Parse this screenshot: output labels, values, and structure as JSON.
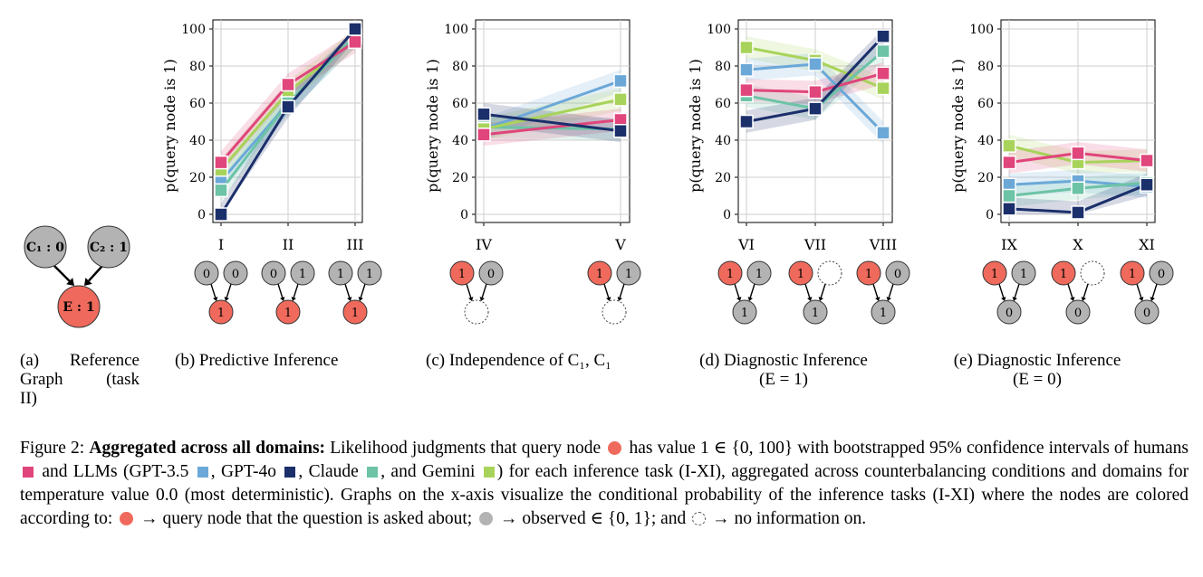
{
  "colors": {
    "humans": "#e0457b",
    "gpt35": "#6ba8d8",
    "gpt4o": "#1b2f6b",
    "claude": "#6cc3a6",
    "gemini": "#a8d35a",
    "query": "#ef6a5c",
    "observed": "#b3b3b3"
  },
  "panel_a": {
    "caption_letter": "(a)",
    "caption_words": [
      "Reference",
      "Graph",
      "(task",
      "II)"
    ],
    "node_c1": "C₁ : 0",
    "node_c2": "C₂ : 1",
    "node_e": "E : 1"
  },
  "chart_data": [
    {
      "type": "line",
      "caption": "(b) Predictive Inference",
      "ylabel": "p(query node is 1)",
      "categories": [
        "I",
        "II",
        "III"
      ],
      "ylim": [
        0,
        100
      ],
      "yticks": [
        0,
        20,
        40,
        60,
        80,
        100
      ],
      "series": [
        {
          "key": "gpt35",
          "values": [
            18,
            60,
            96
          ]
        },
        {
          "key": "gemini",
          "values": [
            24,
            66,
            95
          ]
        },
        {
          "key": "claude",
          "values": [
            13,
            60,
            96
          ]
        },
        {
          "key": "humans",
          "values": [
            28,
            70,
            93
          ]
        },
        {
          "key": "gpt4o",
          "values": [
            0,
            58,
            100
          ]
        }
      ],
      "graphs": [
        {
          "top": [
            "0",
            "0"
          ],
          "bottom": "1",
          "top_types": [
            "obs",
            "obs"
          ],
          "bottom_type": "query"
        },
        {
          "top": [
            "0",
            "1"
          ],
          "bottom": "1",
          "top_types": [
            "obs",
            "obs"
          ],
          "bottom_type": "query"
        },
        {
          "top": [
            "1",
            "1"
          ],
          "bottom": "1",
          "top_types": [
            "obs",
            "obs"
          ],
          "bottom_type": "query"
        }
      ]
    },
    {
      "type": "line",
      "caption": "(c) Independence of C₁, C₁",
      "ylabel": "p(query node is 1)",
      "categories": [
        "IV",
        "V"
      ],
      "ylim": [
        0,
        100
      ],
      "yticks": [
        0,
        20,
        40,
        60,
        80,
        100
      ],
      "series": [
        {
          "key": "claude",
          "values": [
            47,
            46
          ]
        },
        {
          "key": "gpt35",
          "values": [
            46,
            72
          ]
        },
        {
          "key": "gemini",
          "values": [
            46,
            62
          ]
        },
        {
          "key": "humans",
          "values": [
            43,
            51
          ]
        },
        {
          "key": "gpt4o",
          "values": [
            54,
            45
          ]
        }
      ],
      "graphs": [
        {
          "top": [
            "1",
            "0"
          ],
          "bottom": "",
          "top_types": [
            "query",
            "obs"
          ],
          "bottom_type": "none"
        },
        {
          "top": [
            "1",
            "1"
          ],
          "bottom": "",
          "top_types": [
            "query",
            "obs"
          ],
          "bottom_type": "none"
        }
      ]
    },
    {
      "type": "line",
      "caption": "(d) Diagnostic Inference",
      "caption2": "(E = 1)",
      "ylabel": "p(query node is 1)",
      "categories": [
        "VI",
        "VII",
        "VIII"
      ],
      "ylim": [
        0,
        100
      ],
      "yticks": [
        0,
        20,
        40,
        60,
        80,
        100
      ],
      "series": [
        {
          "key": "gemini",
          "values": [
            90,
            83,
            68
          ]
        },
        {
          "key": "gpt35",
          "values": [
            78,
            81,
            44
          ]
        },
        {
          "key": "claude",
          "values": [
            64,
            57,
            88
          ]
        },
        {
          "key": "humans",
          "values": [
            67,
            66,
            76
          ]
        },
        {
          "key": "gpt4o",
          "values": [
            50,
            57,
            96
          ]
        }
      ],
      "graphs": [
        {
          "top": [
            "1",
            "1"
          ],
          "bottom": "1",
          "top_types": [
            "query",
            "obs"
          ],
          "bottom_type": "obs"
        },
        {
          "top": [
            "1",
            ""
          ],
          "bottom": "1",
          "top_types": [
            "query",
            "none"
          ],
          "bottom_type": "obs"
        },
        {
          "top": [
            "1",
            "0"
          ],
          "bottom": "1",
          "top_types": [
            "query",
            "obs"
          ],
          "bottom_type": "obs"
        }
      ]
    },
    {
      "type": "line",
      "caption": "(e) Diagnostic Inference",
      "caption2": "(E = 0)",
      "ylabel": "p(query node is 1)",
      "categories": [
        "IX",
        "X",
        "XI"
      ],
      "ylim": [
        0,
        100
      ],
      "yticks": [
        0,
        20,
        40,
        60,
        80,
        100
      ],
      "series": [
        {
          "key": "gemini",
          "values": [
            37,
            28,
            29
          ]
        },
        {
          "key": "humans",
          "values": [
            28,
            33,
            29
          ]
        },
        {
          "key": "gpt35",
          "values": [
            16,
            18,
            15
          ]
        },
        {
          "key": "claude",
          "values": [
            10,
            14,
            17
          ]
        },
        {
          "key": "gpt4o",
          "values": [
            3,
            1,
            16
          ]
        }
      ],
      "graphs": [
        {
          "top": [
            "1",
            "1"
          ],
          "bottom": "0",
          "top_types": [
            "query",
            "obs"
          ],
          "bottom_type": "obs"
        },
        {
          "top": [
            "1",
            ""
          ],
          "bottom": "0",
          "top_types": [
            "query",
            "none"
          ],
          "bottom_type": "obs"
        },
        {
          "top": [
            "1",
            "0"
          ],
          "bottom": "0",
          "top_types": [
            "query",
            "obs"
          ],
          "bottom_type": "obs"
        }
      ]
    }
  ],
  "caption": {
    "fig_label": "Figure 2:",
    "bold": "Aggregated across all domains:",
    "t1": "Likelihood judgments that query node",
    "t2": "has value 1 ∈ {0, 100} with bootstrapped 95% confidence intervals of humans",
    "t3": "and LLMs (GPT-3.5",
    "t4": ", GPT-4o",
    "t5": ", Claude",
    "t6": ", and Gemini",
    "t7": ") for each inference task (I-XI), aggregated across counterbalancing conditions and domains for temperature value 0.0 (most deterministic). Graphs on the x-axis visualize the conditional probability of the inference tasks (I-XI) where the nodes are colored according to:",
    "t8": "→ query node that the question is asked about;",
    "t9": "→ observed ∈ {0, 1}; and",
    "t10": "→ no information on."
  }
}
